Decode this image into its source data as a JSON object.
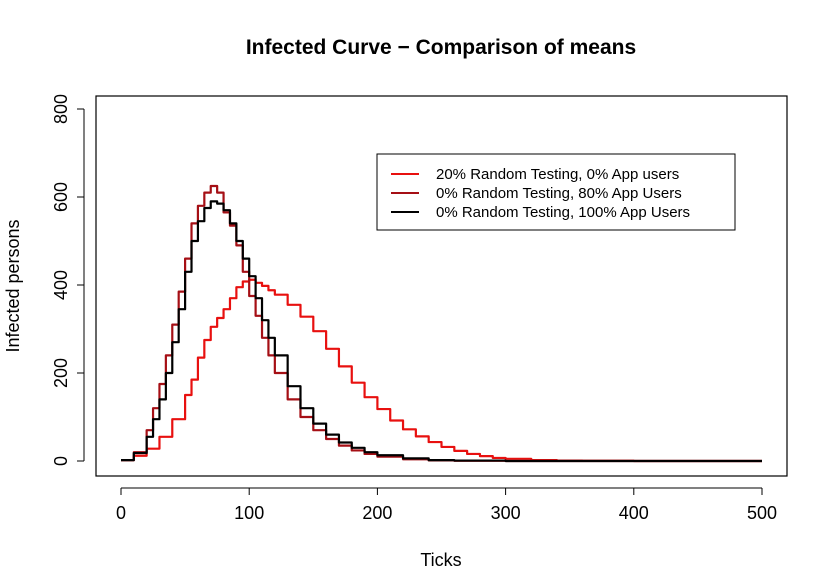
{
  "chart_data": {
    "type": "line",
    "title": "Infected Curve − Comparison of means",
    "xlabel": "Ticks",
    "ylabel": "Infected persons",
    "xlim": [
      0,
      500
    ],
    "ylim": [
      0,
      800
    ],
    "x_ticks": [
      0,
      100,
      200,
      300,
      400,
      500
    ],
    "y_ticks": [
      0,
      200,
      400,
      600,
      800
    ],
    "grid": false,
    "legend_position": "top-right",
    "series": [
      {
        "name": "20% Random Testing, 0% App users",
        "color": "#e8100f",
        "x": [
          0,
          10,
          20,
          30,
          40,
          50,
          55,
          60,
          65,
          70,
          75,
          80,
          85,
          90,
          95,
          100,
          105,
          110,
          115,
          120,
          130,
          140,
          150,
          160,
          170,
          180,
          190,
          200,
          210,
          220,
          230,
          240,
          250,
          260,
          270,
          280,
          290,
          300,
          320,
          340,
          360,
          400,
          450,
          500
        ],
        "y": [
          2,
          12,
          28,
          55,
          95,
          150,
          185,
          235,
          275,
          305,
          325,
          345,
          370,
          395,
          408,
          412,
          405,
          398,
          388,
          378,
          355,
          328,
          295,
          255,
          215,
          178,
          145,
          118,
          92,
          72,
          56,
          43,
          32,
          23,
          16,
          11,
          7,
          5,
          2,
          1,
          0.5,
          0,
          0,
          0
        ]
      },
      {
        "name": "0% Random Testing,   80% App Users",
        "color": "#a50f15",
        "x": [
          0,
          10,
          20,
          25,
          30,
          35,
          40,
          45,
          50,
          55,
          60,
          65,
          70,
          75,
          80,
          85,
          90,
          95,
          100,
          105,
          110,
          115,
          120,
          130,
          140,
          150,
          160,
          170,
          180,
          190,
          200,
          220,
          240,
          260,
          300,
          400,
          500
        ],
        "y": [
          2,
          20,
          70,
          120,
          175,
          240,
          310,
          385,
          460,
          540,
          580,
          610,
          625,
          610,
          565,
          535,
          490,
          430,
          375,
          330,
          280,
          240,
          200,
          140,
          100,
          70,
          50,
          35,
          24,
          16,
          10,
          4,
          1.5,
          0.5,
          0,
          0,
          0
        ]
      },
      {
        "name": "0% Random Testing,   100% App Users",
        "color": "#000000",
        "x": [
          0,
          10,
          20,
          25,
          30,
          35,
          40,
          45,
          50,
          55,
          60,
          65,
          70,
          75,
          80,
          85,
          90,
          95,
          100,
          105,
          110,
          115,
          120,
          130,
          140,
          150,
          160,
          170,
          180,
          190,
          200,
          220,
          240,
          260,
          300,
          400,
          500
        ],
        "y": [
          2,
          18,
          55,
          95,
          140,
          200,
          270,
          345,
          430,
          500,
          545,
          575,
          590,
          585,
          570,
          540,
          500,
          460,
          420,
          370,
          320,
          280,
          240,
          170,
          120,
          85,
          60,
          42,
          30,
          20,
          13,
          6,
          2,
          1,
          0,
          0,
          0
        ]
      }
    ]
  }
}
